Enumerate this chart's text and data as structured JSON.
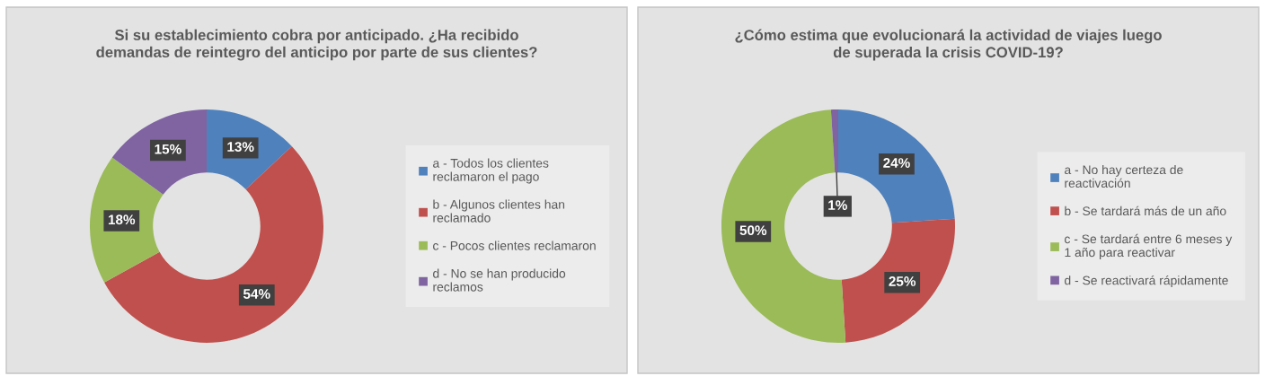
{
  "chart_data": [
    {
      "type": "donut",
      "title": "Si su establecimiento cobra por anticipado. ¿Ha recibido\ndemandas de reintegro del anticipo por parte de sus clientes?",
      "categories": [
        "a - Todos los clientes\nreclamaron el pago",
        "b - Algunos clientes han\nreclamado",
        "c - Pocos clientes reclamaron",
        "d - No se han producido\nreclamos"
      ],
      "values": [
        13,
        54,
        18,
        15
      ],
      "colors": [
        "#4f81bd",
        "#c0504d",
        "#9bbb59",
        "#8064a2"
      ],
      "value_labels": [
        "13%",
        "54%",
        "18%",
        "15%"
      ],
      "legend": "right"
    },
    {
      "type": "donut",
      "title": "¿Cómo estima que evolucionará la actividad de viajes luego\nde superada la crisis COVID-19?",
      "categories": [
        "a - No hay certeza de\nreactivación",
        "b - Se tardará más de un año",
        "c - Se tardará entre 6 meses y\n1 año para reactivar",
        "d - Se reactivará rápidamente"
      ],
      "values": [
        24,
        25,
        50,
        1
      ],
      "colors": [
        "#4f81bd",
        "#c0504d",
        "#9bbb59",
        "#8064a2"
      ],
      "value_labels": [
        "24%",
        "25%",
        "50%",
        "1%"
      ],
      "legend": "right"
    }
  ]
}
